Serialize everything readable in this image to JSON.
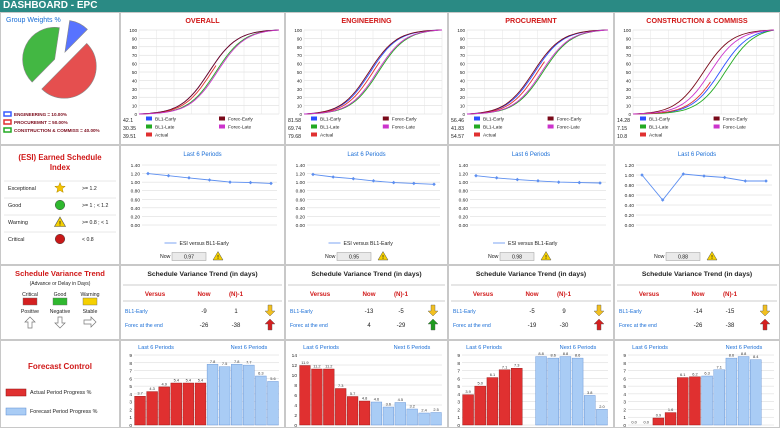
{
  "title": "DASHBOARD - EPC",
  "colors": {
    "header": "#2a8a84",
    "red": "#e03030",
    "blue": "#2a50ff",
    "green": "#22aa22",
    "darkred": "#7a0a1a",
    "magenta": "#cc33cc",
    "accent_blue": "#1a6ed6",
    "panel_title": "#d01818"
  },
  "weights_panel": {
    "title": "Group Weights %",
    "legend": [
      "ENGINEERING = 10.00%",
      "PROCUREMNT = 50.00%",
      "CONSTRUCTION & COMMISS = 40.00%"
    ],
    "pie_values": [
      10,
      50,
      40
    ],
    "pie_colors": [
      "#3a5bff",
      "#e03030",
      "#22aa22"
    ]
  },
  "scurve_legend": [
    "BL1-Early",
    "BL1-Late",
    "Actual",
    "Forec-Early",
    "Forec-Late"
  ],
  "scurve_panels": [
    {
      "title": "OVERALL",
      "y_ticks": [
        "100",
        "90",
        "80",
        "70",
        "60",
        "50",
        "40",
        "30",
        "20",
        "10",
        "0"
      ],
      "values": [
        "42.1",
        "30.35",
        "39.51"
      ]
    },
    {
      "title": "ENGINEERING",
      "y_ticks": [
        "100",
        "90",
        "80",
        "70",
        "60",
        "50",
        "40",
        "30",
        "20",
        "10",
        "0"
      ],
      "values": [
        "81.58",
        "69.74",
        "79.68"
      ]
    },
    {
      "title": "PROCUREMNT",
      "y_ticks": [
        "100",
        "90",
        "80",
        "70",
        "60",
        "50",
        "40",
        "30",
        "20",
        "10",
        "0"
      ],
      "values": [
        "56.46",
        "41.83",
        "54.57"
      ]
    },
    {
      "title": "CONSTRUCTION & COMMISS",
      "y_ticks": [
        "100",
        "90",
        "80",
        "70",
        "60",
        "50",
        "40",
        "30",
        "20",
        "10",
        "0"
      ],
      "values": [
        "14.28",
        "7.15",
        "10.8"
      ]
    }
  ],
  "esi_legend": {
    "title": "(ESI) Earned Schedule Index",
    "rows": [
      {
        "name": "Exceptional",
        "rule": ">= 1.2",
        "icon": "star-icon"
      },
      {
        "name": "Good",
        "rule": ">= 1 ; < 1.2",
        "icon": "green-circle-icon"
      },
      {
        "name": "Warning",
        "rule": ">= 0.8 ; < 1",
        "icon": "warning-icon"
      },
      {
        "name": "Critical",
        "rule": "< 0.8",
        "icon": "red-circle-icon"
      }
    ]
  },
  "esi_panels": [
    {
      "subtitle": "Last 6 Periods",
      "y_ticks": [
        "1.40",
        "1.20",
        "1.00",
        "0.80",
        "0.60",
        "0.40",
        "0.20",
        "0.00"
      ],
      "ylim": [
        0,
        1.4
      ],
      "series_name": "ESI versus BL1-Early",
      "values": [
        1.2,
        1.15,
        1.1,
        1.05,
        1.0,
        0.99,
        0.97
      ],
      "now_label": "Now",
      "now_value": "0.97"
    },
    {
      "subtitle": "Last 6 Periods",
      "y_ticks": [
        "1.40",
        "1.20",
        "1.00",
        "0.80",
        "0.60",
        "0.40",
        "0.20",
        "0.00"
      ],
      "ylim": [
        0,
        1.4
      ],
      "series_name": "ESI versus BL1-Early",
      "values": [
        1.18,
        1.12,
        1.08,
        1.03,
        0.99,
        0.97,
        0.95
      ],
      "now_label": "Now",
      "now_value": "0.95"
    },
    {
      "subtitle": "Last 6 Periods",
      "y_ticks": [
        "1.40",
        "1.20",
        "1.00",
        "0.80",
        "0.60",
        "0.40",
        "0.20",
        "0.00"
      ],
      "ylim": [
        0,
        1.4
      ],
      "series_name": "ESI versus BL1-Early",
      "values": [
        1.15,
        1.1,
        1.06,
        1.03,
        1.0,
        0.99,
        0.98
      ],
      "now_label": "Now",
      "now_value": "0.98"
    },
    {
      "subtitle": "Last 6 Periods",
      "y_ticks": [
        "1.20",
        "1.00",
        "0.80",
        "0.60",
        "0.40",
        "0.20",
        "0.00"
      ],
      "ylim": [
        0,
        1.2
      ],
      "series_name": "",
      "values": [
        1.0,
        0.5,
        1.02,
        0.98,
        0.95,
        0.88,
        0.88
      ],
      "now_label": "Now",
      "now_value": "0.88"
    }
  ],
  "sv_legend": {
    "title": "Schedule Variance Trend",
    "subtitle": "(Advance or Delay in Days)",
    "columns": [
      {
        "name": "Critical",
        "trend": "Positive",
        "arrow": "up-arrow-icon"
      },
      {
        "name": "Good",
        "trend": "Negative",
        "arrow": "down-arrow-icon"
      },
      {
        "name": "Warning",
        "trend": "Stable",
        "arrow": "right-arrow-icon"
      }
    ]
  },
  "sv_panels": [
    {
      "title": "Schedule Variance Trend (in days)",
      "headers": [
        "Versus",
        "Now",
        "(N)-1"
      ],
      "rows": [
        {
          "label": "BL1-Early",
          "now": "-9",
          "prev": "1",
          "arrow": "down"
        },
        {
          "label": "Forec at the end",
          "now": "-26",
          "prev": "-38",
          "arrow": "up"
        }
      ]
    },
    {
      "title": "Schedule Variance Trend (in days)",
      "headers": [
        "Versus",
        "Now",
        "(N)-1"
      ],
      "rows": [
        {
          "label": "BL1-Early",
          "now": "-13",
          "prev": "-5",
          "arrow": "down"
        },
        {
          "label": "Forec at the end",
          "now": "4",
          "prev": "-29",
          "arrow": "up-green"
        }
      ]
    },
    {
      "title": "Schedule Variance Trend (in days)",
      "headers": [
        "Versus",
        "Now",
        "(N)-1"
      ],
      "rows": [
        {
          "label": "BL1-Early",
          "now": "-5",
          "prev": "9",
          "arrow": "down"
        },
        {
          "label": "Forec at the end",
          "now": "-19",
          "prev": "-30",
          "arrow": "up"
        }
      ]
    },
    {
      "title": "Schedule Variance Trend (in days)",
      "headers": [
        "Versus",
        "Now",
        "(N)-1"
      ],
      "rows": [
        {
          "label": "BL1-Early",
          "now": "-14",
          "prev": "-15",
          "arrow": "down"
        },
        {
          "label": "Forec at the end",
          "now": "-26",
          "prev": "-38",
          "arrow": "up"
        }
      ]
    }
  ],
  "forecast_legend": {
    "title": "Forecast Control",
    "items": [
      "Actual Period Progress %",
      "Forecast Period Progress %"
    ]
  },
  "forecast_panels": [
    {
      "left_label": "Last 6 Periods",
      "right_label": "Next 6 Periods",
      "y_ticks": [
        "9",
        "8",
        "7",
        "6",
        "5",
        "4",
        "3",
        "2",
        "1",
        "0"
      ],
      "ylim": [
        0,
        9
      ],
      "actual": [
        3.7,
        4.3,
        4.9,
        5.4,
        5.4,
        5.4
      ],
      "actual_labels": [
        "3.7",
        "4.3",
        "4.9",
        "5.4",
        "5.4",
        "5.4"
      ],
      "forecast": [
        7.8,
        7.5,
        7.8,
        7.7,
        6.3,
        5.6
      ],
      "forecast_labels": [
        "7.8",
        "7.5",
        "7.8",
        "7.7",
        "6.3",
        "5.6"
      ]
    },
    {
      "left_label": "Last 6 Periods",
      "right_label": "Next 6 Periods",
      "y_ticks": [
        "14",
        "12",
        "10",
        "8",
        "6",
        "4",
        "2",
        "0"
      ],
      "ylim": [
        0,
        14
      ],
      "actual": [
        11.9,
        11.2,
        11.2,
        7.3,
        5.7,
        4.8
      ],
      "actual_labels": [
        "11.9",
        "11.2",
        "11.2",
        "7.3",
        "5.7",
        "4.8"
      ],
      "forecast": [
        4.6,
        3.6,
        4.5,
        3.2,
        2.4,
        2.5
      ],
      "forecast_labels": [
        "4.6",
        "3.6",
        "4.5",
        "3.2",
        "2.4",
        "2.5"
      ]
    },
    {
      "left_label": "Last 6 Periods",
      "right_label": "Next 6 Periods",
      "y_ticks": [
        "9",
        "8",
        "7",
        "6",
        "5",
        "4",
        "3",
        "2",
        "1",
        "0"
      ],
      "ylim": [
        0,
        9
      ],
      "actual": [
        3.9,
        5.0,
        6.1,
        7.1,
        7.3,
        0
      ],
      "actual_labels": [
        "3.9",
        "5.0",
        "6.1",
        "7.1",
        "7.3",
        ""
      ],
      "forecast": [
        8.8,
        8.6,
        8.8,
        8.6,
        3.8,
        2.0
      ],
      "forecast_labels": [
        "8.8",
        "8.6",
        "8.8",
        "8.6",
        "3.8",
        "2.0"
      ]
    },
    {
      "left_label": "Last 6 Periods",
      "right_label": "Next 6 Periods",
      "y_ticks": [
        "9",
        "8",
        "7",
        "6",
        "5",
        "4",
        "3",
        "2",
        "1",
        "0"
      ],
      "ylim": [
        0,
        9
      ],
      "actual": [
        0.0,
        0.0,
        0.9,
        1.6,
        6.1,
        6.2
      ],
      "actual_labels": [
        "0.0",
        "0.0",
        "0.9",
        "1.6",
        "6.1",
        "6.2"
      ],
      "forecast": [
        6.3,
        7.1,
        8.6,
        8.8,
        8.4,
        0
      ],
      "forecast_labels": [
        "6.3",
        "7.1",
        "8.6",
        "8.8",
        "8.4",
        ""
      ]
    }
  ]
}
